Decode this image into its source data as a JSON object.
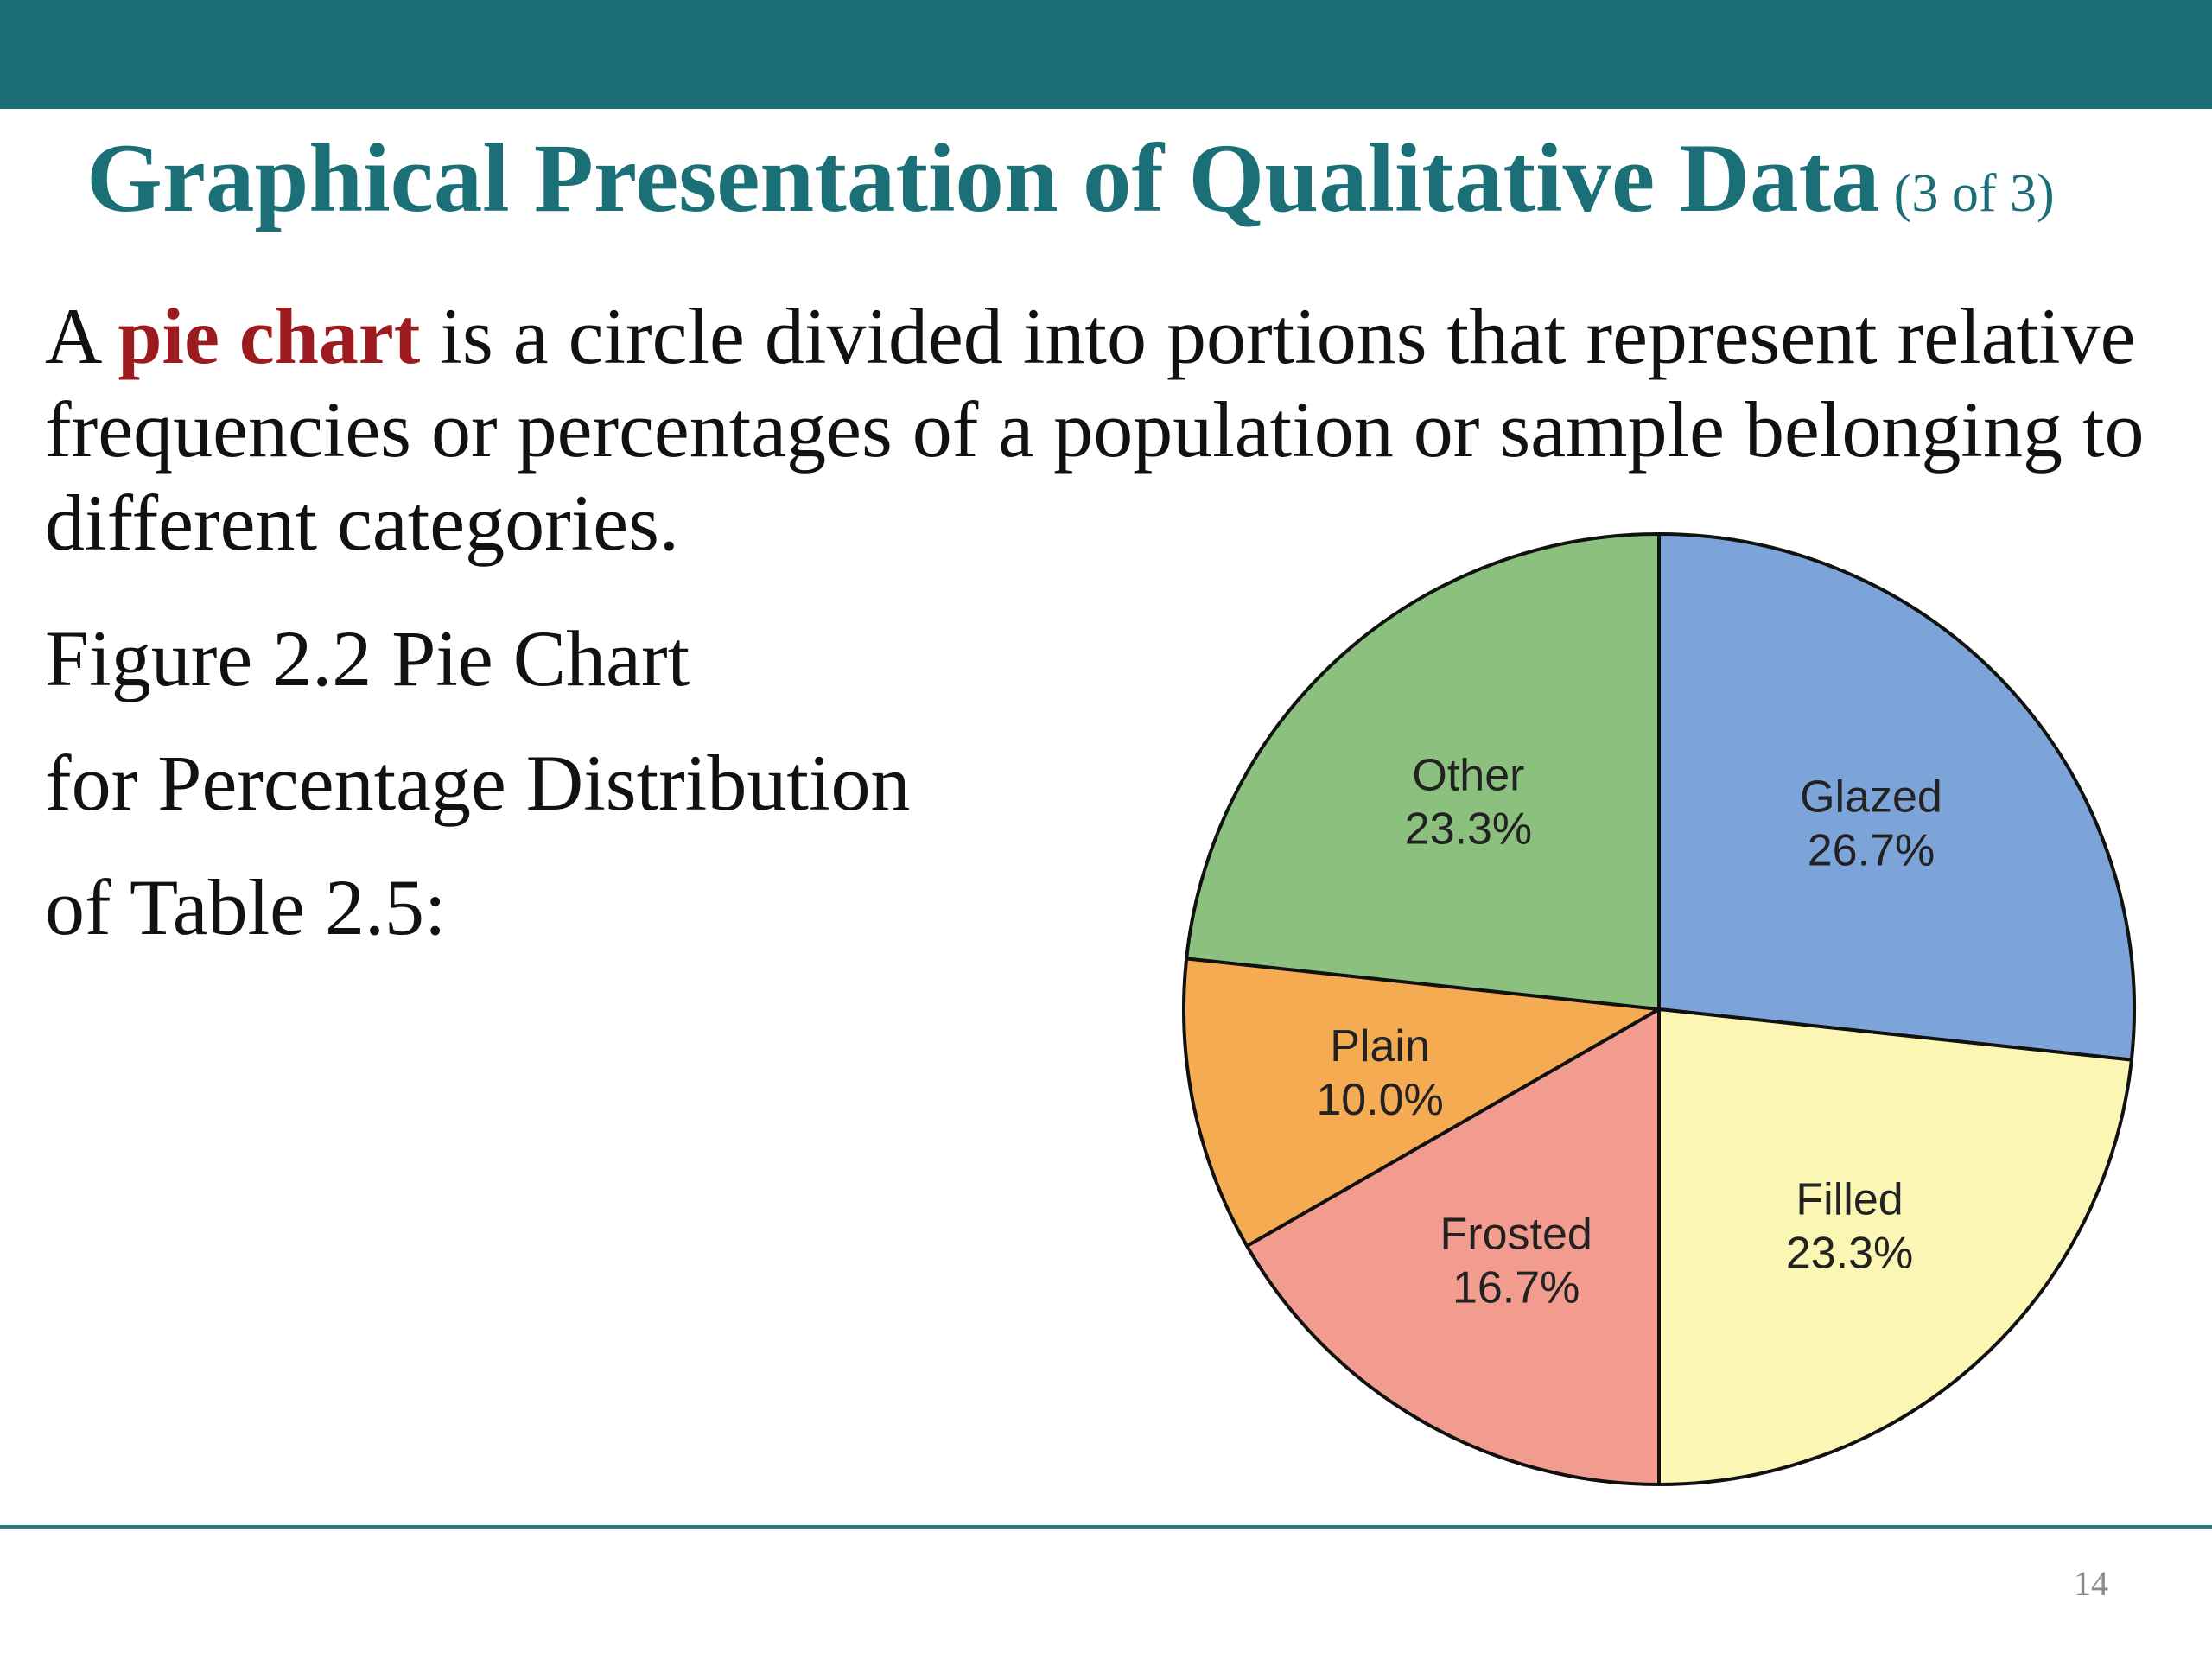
{
  "slide": {
    "title": "Graphical Presentation of Qualitative Data",
    "title_suffix": "(3 of 3)",
    "definition": {
      "prefix": "A ",
      "term": "pie chart",
      "rest": " is a circle divided into portions that represent relative frequencies or percentages of a population or sample belonging to different categories."
    },
    "figure_caption": {
      "line1": "Figure 2.2 Pie Chart",
      "line2": "for Percentage Distribution",
      "line3": "of Table 2.5:"
    },
    "page_number": "14"
  },
  "colors": {
    "header_bar": "#1b6c74",
    "title": "#1b7077",
    "term_highlight": "#9b1b1e"
  },
  "chart_data": {
    "type": "pie",
    "title": "",
    "start_angle_deg": 0,
    "direction": "clockwise",
    "slices": [
      {
        "label": "Glazed",
        "value": 26.7,
        "display": "26.7%",
        "color": "#7da4d8"
      },
      {
        "label": "Filled",
        "value": 23.3,
        "display": "23.3%",
        "color": "#fbf6b3"
      },
      {
        "label": "Frosted",
        "value": 16.7,
        "display": "16.7%",
        "color": "#f29b8f"
      },
      {
        "label": "Plain",
        "value": 10.0,
        "display": "10.0%",
        "color": "#f5ab52"
      },
      {
        "label": "Other",
        "value": 23.3,
        "display": "23.3%",
        "color": "#8bc07f"
      }
    ]
  }
}
